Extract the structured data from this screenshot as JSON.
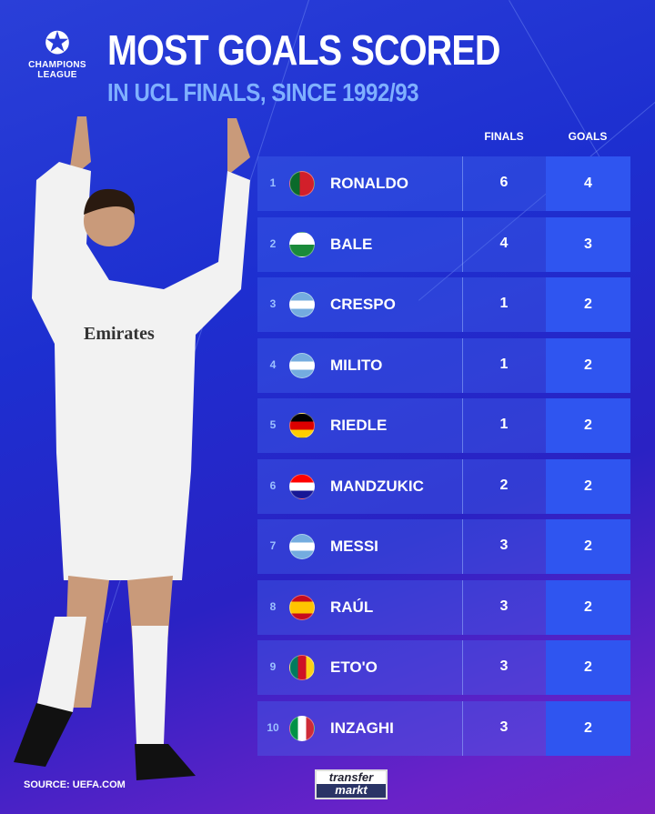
{
  "header": {
    "title": "MOST GOALS SCORED",
    "subtitle": "IN UCL FINALS, SINCE 1992/93",
    "logo_text_1": "CHAMPIONS",
    "logo_text_2": "LEAGUE",
    "logo_icon": "starball-icon"
  },
  "table": {
    "columns": [
      "FINALS",
      "GOALS"
    ],
    "rows": [
      {
        "rank": "1",
        "flag": "portugal",
        "name": "RONALDO",
        "finals": "6",
        "goals": "4"
      },
      {
        "rank": "2",
        "flag": "wales",
        "name": "BALE",
        "finals": "4",
        "goals": "3"
      },
      {
        "rank": "3",
        "flag": "argentina",
        "name": "CRESPO",
        "finals": "1",
        "goals": "2"
      },
      {
        "rank": "4",
        "flag": "argentina",
        "name": "MILITO",
        "finals": "1",
        "goals": "2"
      },
      {
        "rank": "5",
        "flag": "germany",
        "name": "RIEDLE",
        "finals": "1",
        "goals": "2"
      },
      {
        "rank": "6",
        "flag": "croatia",
        "name": "MANDZUKIC",
        "finals": "2",
        "goals": "2"
      },
      {
        "rank": "7",
        "flag": "argentina",
        "name": "MESSI",
        "finals": "3",
        "goals": "2"
      },
      {
        "rank": "8",
        "flag": "spain",
        "name": "RAÚL",
        "finals": "3",
        "goals": "2"
      },
      {
        "rank": "9",
        "flag": "cameroon",
        "name": "ETO'O",
        "finals": "3",
        "goals": "2"
      },
      {
        "rank": "10",
        "flag": "italy",
        "name": "INZAGHI",
        "finals": "3",
        "goals": "2"
      }
    ]
  },
  "footer": {
    "source": "SOURCE: UEFA.COM",
    "brand_1": "transfer",
    "brand_2": "markt"
  },
  "colors": {
    "goals_box": "#2f55f0",
    "subtitle": "#7fb0ff"
  }
}
